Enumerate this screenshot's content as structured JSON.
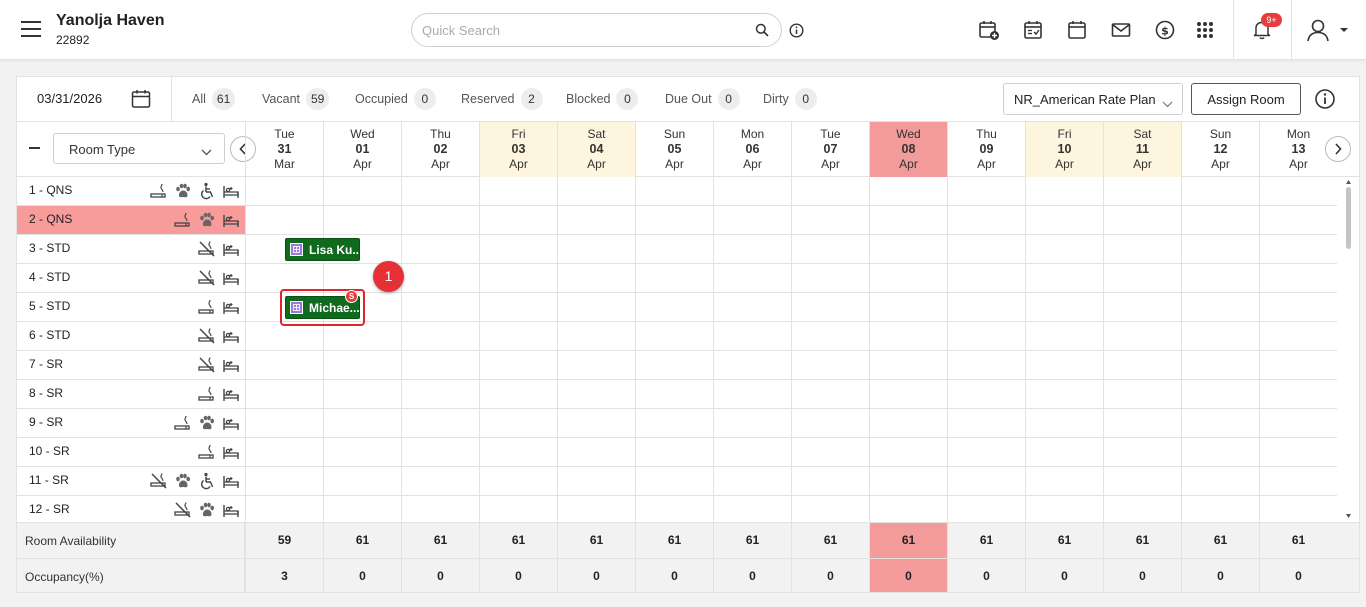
{
  "header": {
    "property_name": "Yanolja Haven",
    "property_id": "22892",
    "search_placeholder": "Quick Search",
    "notification_count": "9+"
  },
  "filterbar": {
    "date": "03/31/2026",
    "stats": [
      {
        "label": "All",
        "count": "61"
      },
      {
        "label": "Vacant",
        "count": "59"
      },
      {
        "label": "Occupied",
        "count": "0"
      },
      {
        "label": "Reserved",
        "count": "2"
      },
      {
        "label": "Blocked",
        "count": "0"
      },
      {
        "label": "Due Out",
        "count": "0"
      },
      {
        "label": "Dirty",
        "count": "0"
      }
    ],
    "rate_plan": "NR_American Rate Plan",
    "assign_label": "Assign Room"
  },
  "calendar": {
    "room_type_select": "Room Type",
    "days": [
      {
        "dow": "Tue",
        "day": "31",
        "mon": "Mar",
        "kind": "normal"
      },
      {
        "dow": "Wed",
        "day": "01",
        "mon": "Apr",
        "kind": "normal"
      },
      {
        "dow": "Thu",
        "day": "02",
        "mon": "Apr",
        "kind": "normal"
      },
      {
        "dow": "Fri",
        "day": "03",
        "mon": "Apr",
        "kind": "weekend"
      },
      {
        "dow": "Sat",
        "day": "04",
        "mon": "Apr",
        "kind": "weekend"
      },
      {
        "dow": "Sun",
        "day": "05",
        "mon": "Apr",
        "kind": "normal"
      },
      {
        "dow": "Mon",
        "day": "06",
        "mon": "Apr",
        "kind": "normal"
      },
      {
        "dow": "Tue",
        "day": "07",
        "mon": "Apr",
        "kind": "normal"
      },
      {
        "dow": "Wed",
        "day": "08",
        "mon": "Apr",
        "kind": "today"
      },
      {
        "dow": "Thu",
        "day": "09",
        "mon": "Apr",
        "kind": "normal"
      },
      {
        "dow": "Fri",
        "day": "10",
        "mon": "Apr",
        "kind": "weekend"
      },
      {
        "dow": "Sat",
        "day": "11",
        "mon": "Apr",
        "kind": "weekend"
      },
      {
        "dow": "Sun",
        "day": "12",
        "mon": "Apr",
        "kind": "normal"
      },
      {
        "dow": "Mon",
        "day": "13",
        "mon": "Apr",
        "kind": "normal"
      }
    ],
    "rooms": [
      {
        "label": "1 - QNS",
        "icons": [
          "smoking-icon",
          "pet-icon",
          "accessible-icon",
          "bed-icon"
        ],
        "highlight": false
      },
      {
        "label": "2 - QNS",
        "icons": [
          "smoking-icon",
          "pet-icon",
          "bed-icon"
        ],
        "highlight": true
      },
      {
        "label": "3 - STD",
        "icons": [
          "no-smoking-icon",
          "bed-icon"
        ],
        "highlight": false
      },
      {
        "label": "4 - STD",
        "icons": [
          "no-smoking-icon",
          "bed-icon"
        ],
        "highlight": false
      },
      {
        "label": "5 - STD",
        "icons": [
          "smoking-icon",
          "bed-icon"
        ],
        "highlight": false
      },
      {
        "label": "6 - STD",
        "icons": [
          "no-smoking-icon",
          "bed-icon"
        ],
        "highlight": false
      },
      {
        "label": "7 - SR",
        "icons": [
          "no-smoking-icon",
          "bed-icon"
        ],
        "highlight": false
      },
      {
        "label": "8 - SR",
        "icons": [
          "smoking-icon",
          "bed-icon"
        ],
        "highlight": false
      },
      {
        "label": "9 - SR",
        "icons": [
          "smoking-icon",
          "pet-icon",
          "bed-icon"
        ],
        "highlight": false
      },
      {
        "label": "10 - SR",
        "icons": [
          "smoking-icon",
          "bed-icon"
        ],
        "highlight": false
      },
      {
        "label": "11 - SR",
        "icons": [
          "no-smoking-icon",
          "pet-icon",
          "accessible-icon",
          "bed-icon"
        ],
        "highlight": false
      },
      {
        "label": "12 - SR",
        "icons": [
          "no-smoking-icon",
          "pet-icon",
          "bed-icon"
        ],
        "highlight": false
      }
    ],
    "bookings": [
      {
        "guest": "Lisa Ku...",
        "room_index": 2,
        "day_index": 0,
        "badge": ""
      },
      {
        "guest": "Michae...",
        "room_index": 4,
        "day_index": 0,
        "badge": "S"
      }
    ],
    "marker_label": "1"
  },
  "footer": {
    "availability_label": "Room Availability",
    "availability": [
      "59",
      "61",
      "61",
      "61",
      "61",
      "61",
      "61",
      "61",
      "61",
      "61",
      "61",
      "61",
      "61",
      "61"
    ],
    "occupancy_label": "Occupancy(%)",
    "occupancy": [
      "3",
      "0",
      "0",
      "0",
      "0",
      "0",
      "0",
      "0",
      "0",
      "0",
      "0",
      "0",
      "0",
      "0"
    ]
  },
  "colors": {
    "today": "#f39a9a",
    "weekend": "#fdf5dd",
    "booking": "#0f6a1d",
    "highlight_row": "#f79b9b",
    "marker": "#e53035"
  }
}
